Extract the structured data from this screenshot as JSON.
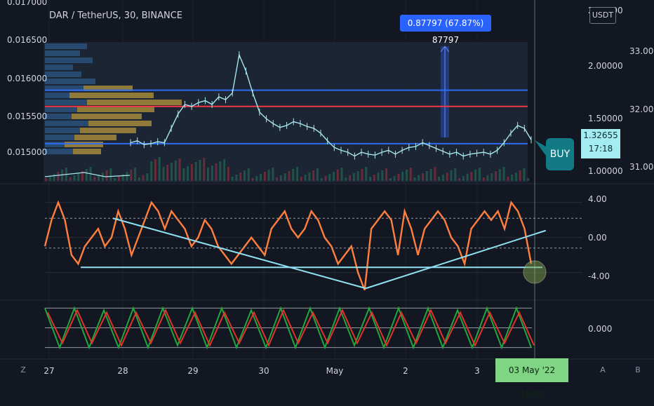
{
  "header": {
    "symbol": "DAR / TetherUS, 30, BINANCE",
    "currency_button": "USDT"
  },
  "measure_label": "0.87797 (67.87%) 87797",
  "price_tag": {
    "price": "1.32655",
    "countdown": "17:18"
  },
  "signal_label": "BUY",
  "crosshair_date": "03 May '22   19:00",
  "axis_buttons": {
    "left": "Z",
    "auto": "A",
    "log": "B"
  },
  "colors": {
    "background": "#131722",
    "candle": "#a8e6ef",
    "blue_line": "#2f6cf6",
    "red_line": "#f23645",
    "rsi": "#ff7f3f",
    "trend": "#8fe0f0",
    "stoch_green": "#20a63c",
    "stoch_red": "#e0332c",
    "profile_blue": "#2a4f78",
    "profile_gold": "#a58a3b"
  },
  "chart_data": [
    {
      "type": "line",
      "title": "DAR / TetherUS, 30, BINANCE",
      "left_axis": {
        "ticks": [
          "0.017000",
          "0.016500",
          "0.016000",
          "0.015500",
          "0.015000"
        ],
        "range": [
          0.0148,
          0.017
        ]
      },
      "right_axis_a": {
        "ticks": [
          "2.50000",
          "2.00000",
          "1.50000",
          "1.00000"
        ],
        "range": [
          0.9,
          2.5
        ]
      },
      "right_axis_b": {
        "ticks": [
          "33.00",
          "32.00",
          "31.00"
        ]
      },
      "x_labels": [
        "27",
        "28",
        "29",
        "30",
        "May",
        "2",
        "3"
      ],
      "series": [
        {
          "values": [
            1.3,
            1.32,
            1.28,
            1.29,
            1.31,
            1.3,
            1.45,
            1.6,
            1.7,
            1.68,
            1.72,
            1.74,
            1.7,
            1.78,
            1.75,
            1.82,
            2.22,
            2.05,
            1.82,
            1.62,
            1.55,
            1.5,
            1.46,
            1.48,
            1.52,
            1.5,
            1.47,
            1.45,
            1.4,
            1.32,
            1.25,
            1.22,
            1.2,
            1.16,
            1.2,
            1.18,
            1.17,
            1.2,
            1.22,
            1.18,
            1.22,
            1.25,
            1.26,
            1.3,
            1.27,
            1.24,
            1.21,
            1.18,
            1.2,
            1.16,
            1.18,
            1.19,
            1.2,
            1.18,
            1.22,
            1.3,
            1.4,
            1.48,
            1.45,
            1.33
          ]
        }
      ],
      "horizontal_lines": [
        {
          "value": 1.85,
          "color": "blue"
        },
        {
          "value": 1.68,
          "color": "red"
        },
        {
          "value": 1.29,
          "color": "blue"
        }
      ],
      "annotation": "0.87797 (67.87%) 87797",
      "last_price": "1.32655",
      "signal": "BUY"
    },
    {
      "type": "line",
      "y_ticks": [
        "4.00",
        "0.00",
        "-4.00"
      ],
      "ylim": [
        -6.5,
        5.5
      ],
      "series": [
        {
          "values": [
            -1,
            2,
            4,
            2,
            -2,
            -3,
            -1,
            0,
            1,
            -1,
            0,
            3,
            1,
            -2,
            0,
            2,
            4,
            3,
            1,
            3,
            2,
            1,
            -1,
            0,
            2,
            1,
            -1,
            -2,
            -3,
            -2,
            -1,
            0,
            -1,
            -2,
            1,
            2,
            3,
            1,
            0,
            1,
            3,
            2,
            0,
            -1,
            -3,
            -2,
            -1,
            -4,
            -6,
            1,
            2,
            3,
            2,
            -2,
            3,
            1,
            -2,
            1,
            2,
            3,
            2,
            0,
            -1,
            -3,
            1,
            2,
            3,
            2,
            3,
            1,
            4,
            3,
            1,
            -3
          ]
        }
      ],
      "trendlines": [
        {
          "from": [
            0.14,
            2.2
          ],
          "to": [
            0.66,
            -5.8
          ]
        },
        {
          "from": [
            0.66,
            -5.8
          ],
          "to": [
            1.03,
            0.8
          ]
        }
      ],
      "support": -3.4
    },
    {
      "type": "line",
      "y_ticks": [
        "0.000"
      ],
      "ylim": [
        -1.2,
        1.2
      ],
      "series": [
        {
          "values": [
            0.9,
            -0.9,
            0.9,
            -0.9,
            0.8,
            -0.9,
            0.9,
            -0.9,
            0.9,
            -0.8,
            0.9,
            -0.9,
            0.9,
            -0.9,
            0.8,
            -0.9,
            0.9,
            -0.9,
            0.9,
            -0.9,
            0.9,
            -0.8,
            0.9,
            -0.9,
            0.9,
            -0.9,
            0.9,
            -0.9,
            0.8,
            -0.9,
            0.9,
            -0.9,
            0.9,
            -0.9
          ]
        },
        {
          "values": [
            0.7,
            -0.7,
            0.8,
            -0.7,
            0.7,
            -0.8,
            0.7,
            -0.7,
            0.8,
            -0.7,
            0.7,
            -0.8,
            0.7,
            -0.7,
            0.7,
            -0.8,
            0.8,
            -0.7,
            0.7,
            -0.7,
            0.8,
            -0.7,
            0.7,
            -0.8,
            0.7,
            -0.7,
            0.8,
            -0.7,
            0.7,
            -0.8,
            0.7,
            -0.7,
            0.7,
            -0.8
          ]
        }
      ]
    }
  ]
}
